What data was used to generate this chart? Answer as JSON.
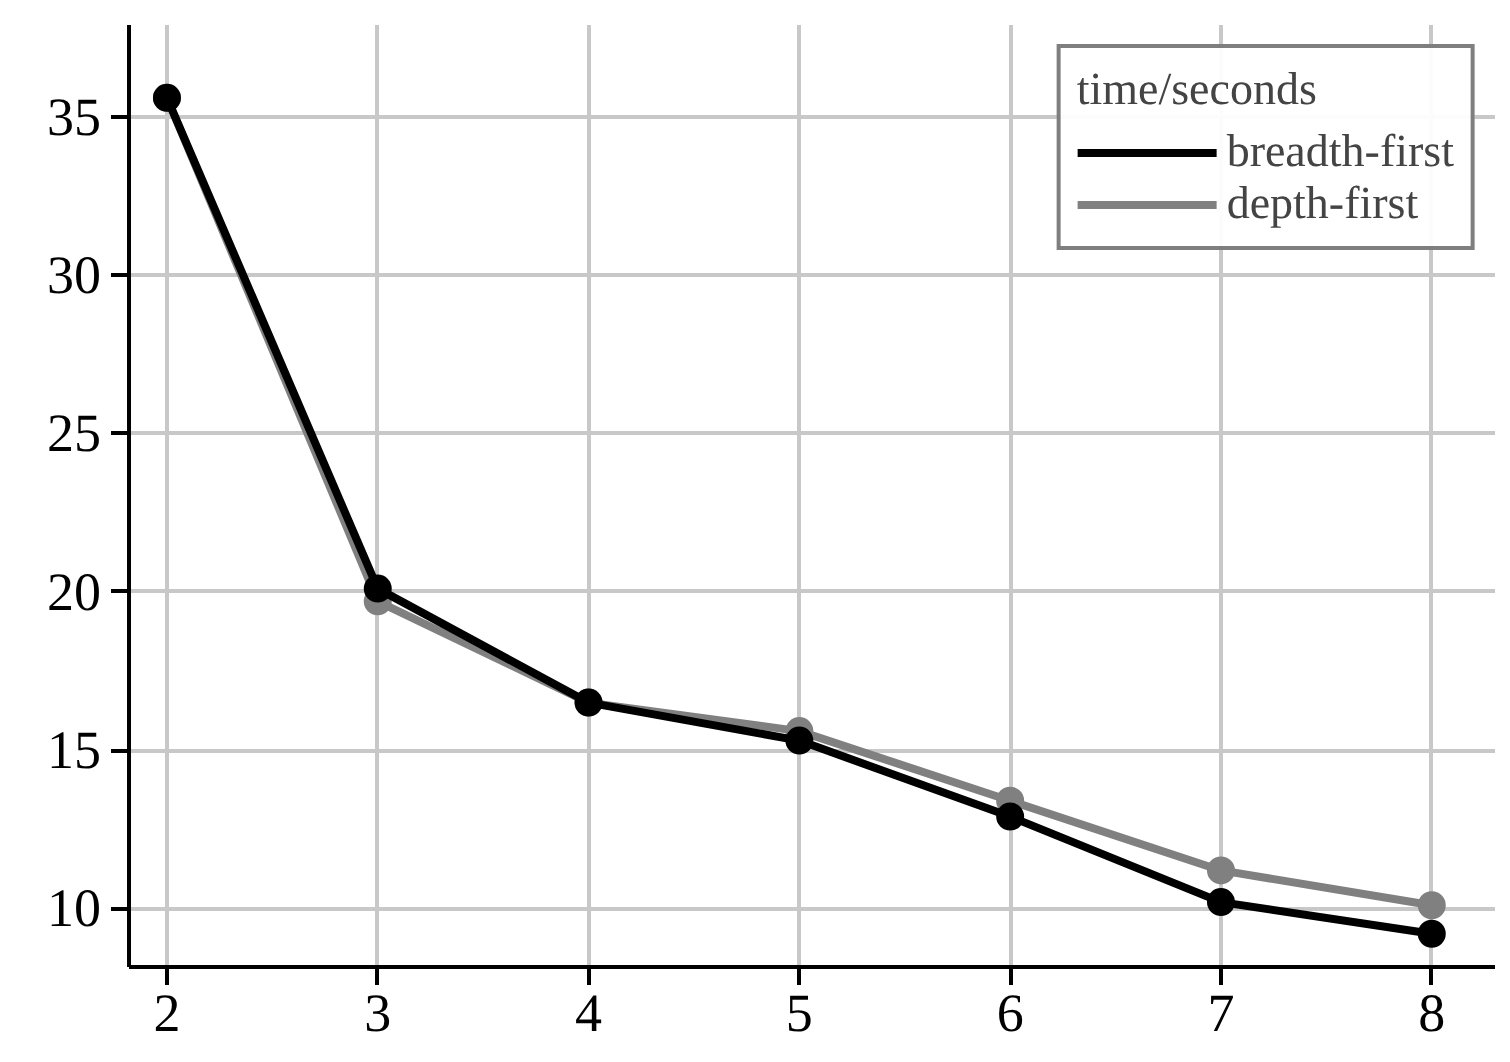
{
  "chart_data": {
    "type": "line",
    "x": [
      2,
      3,
      4,
      5,
      6,
      7,
      8
    ],
    "series": [
      {
        "name": "depth-first",
        "color": "#808080",
        "values": [
          35.6,
          19.7,
          16.5,
          15.6,
          13.4,
          11.2,
          10.1
        ]
      },
      {
        "name": "breadth-first",
        "color": "#000000",
        "values": [
          35.6,
          20.1,
          16.5,
          15.3,
          12.9,
          10.2,
          9.2
        ]
      }
    ],
    "legend_title": "time/seconds",
    "legend": "top right",
    "marker": "circle",
    "line_style": "solid",
    "grid": true,
    "xlim": [
      1.82,
      8.3
    ],
    "ylim": [
      8.15,
      37.9
    ],
    "xticks": [
      2,
      3,
      4,
      5,
      6,
      7,
      8
    ],
    "yticks": [
      10,
      15,
      20,
      25,
      30,
      35
    ]
  }
}
